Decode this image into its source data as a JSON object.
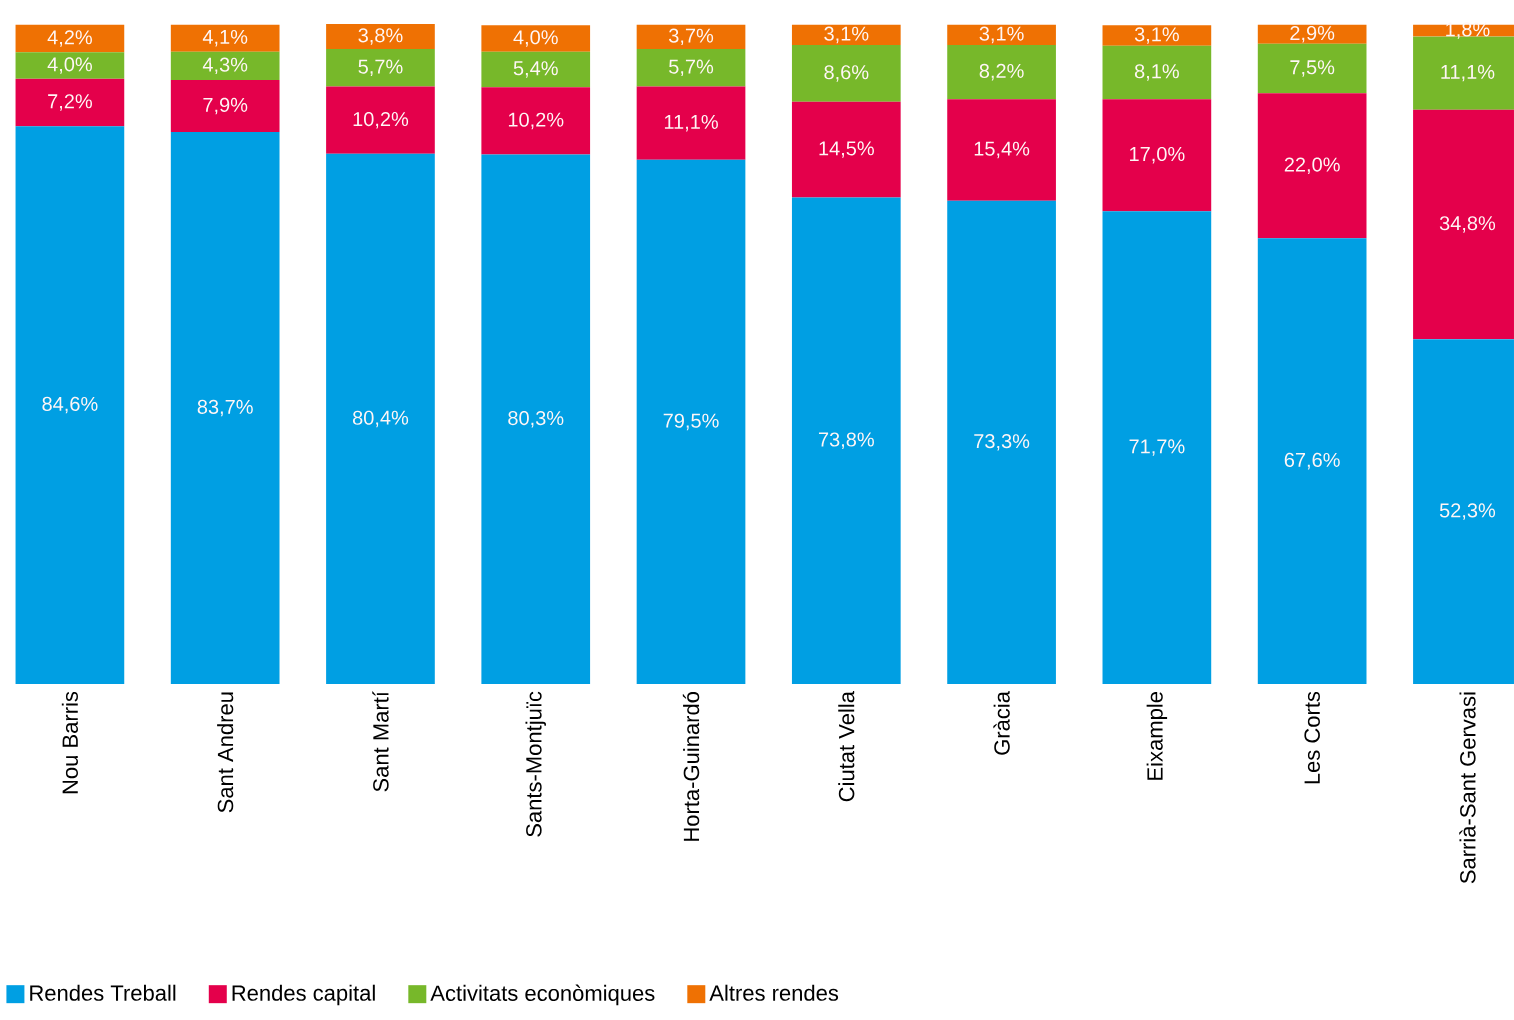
{
  "chart_data": {
    "type": "bar",
    "stacked": true,
    "legend": "bottom",
    "categories": [
      "Nou Barris",
      "Sant Andreu",
      "Sant Martí",
      "Sants-Montjuïc",
      "Horta-Guinardó",
      "Ciutat Vella",
      "Gràcia",
      "Eixample",
      "Les Corts",
      "Sarrià-Sant Gervasi"
    ],
    "series": [
      {
        "name": "Rendes Treball",
        "color": "#009fe3",
        "values": [
          84.6,
          83.7,
          80.4,
          80.3,
          79.5,
          73.8,
          73.3,
          71.7,
          67.6,
          52.3
        ],
        "value_labels": [
          "84,6%",
          "83,7%",
          "80,4%",
          "80,3%",
          "79,5%",
          "73,8%",
          "73,3%",
          "71,7%",
          "67,6%",
          "52,3%"
        ]
      },
      {
        "name": "Rendes capital",
        "color": "#e4004b",
        "values": [
          7.2,
          7.9,
          10.2,
          10.2,
          11.1,
          14.5,
          15.4,
          17.0,
          22.0,
          34.8
        ],
        "value_labels": [
          "7,2%",
          "7,9%",
          "10,2%",
          "10,2%",
          "11,1%",
          "14,5%",
          "15,4%",
          "17,0%",
          "22,0%",
          "34,8%"
        ]
      },
      {
        "name": "Activitats econòmiques",
        "color": "#77b82a",
        "values": [
          4.0,
          4.3,
          5.7,
          5.4,
          5.7,
          8.6,
          8.2,
          8.1,
          7.5,
          11.1
        ],
        "value_labels": [
          "4,0%",
          "4,3%",
          "5,7%",
          "5,4%",
          "5,7%",
          "8,6%",
          "8,2%",
          "8,1%",
          "7,5%",
          "11,1%"
        ]
      },
      {
        "name": "Altres rendes",
        "color": "#ef7103",
        "values": [
          4.2,
          4.1,
          3.8,
          4.0,
          3.7,
          3.1,
          3.1,
          3.1,
          2.9,
          1.8
        ],
        "value_labels": [
          "4,2%",
          "4,1%",
          "3,8%",
          "4,0%",
          "3,7%",
          "3,1%",
          "3,1%",
          "3,1%",
          "2,9%",
          "1,8%"
        ]
      }
    ]
  }
}
